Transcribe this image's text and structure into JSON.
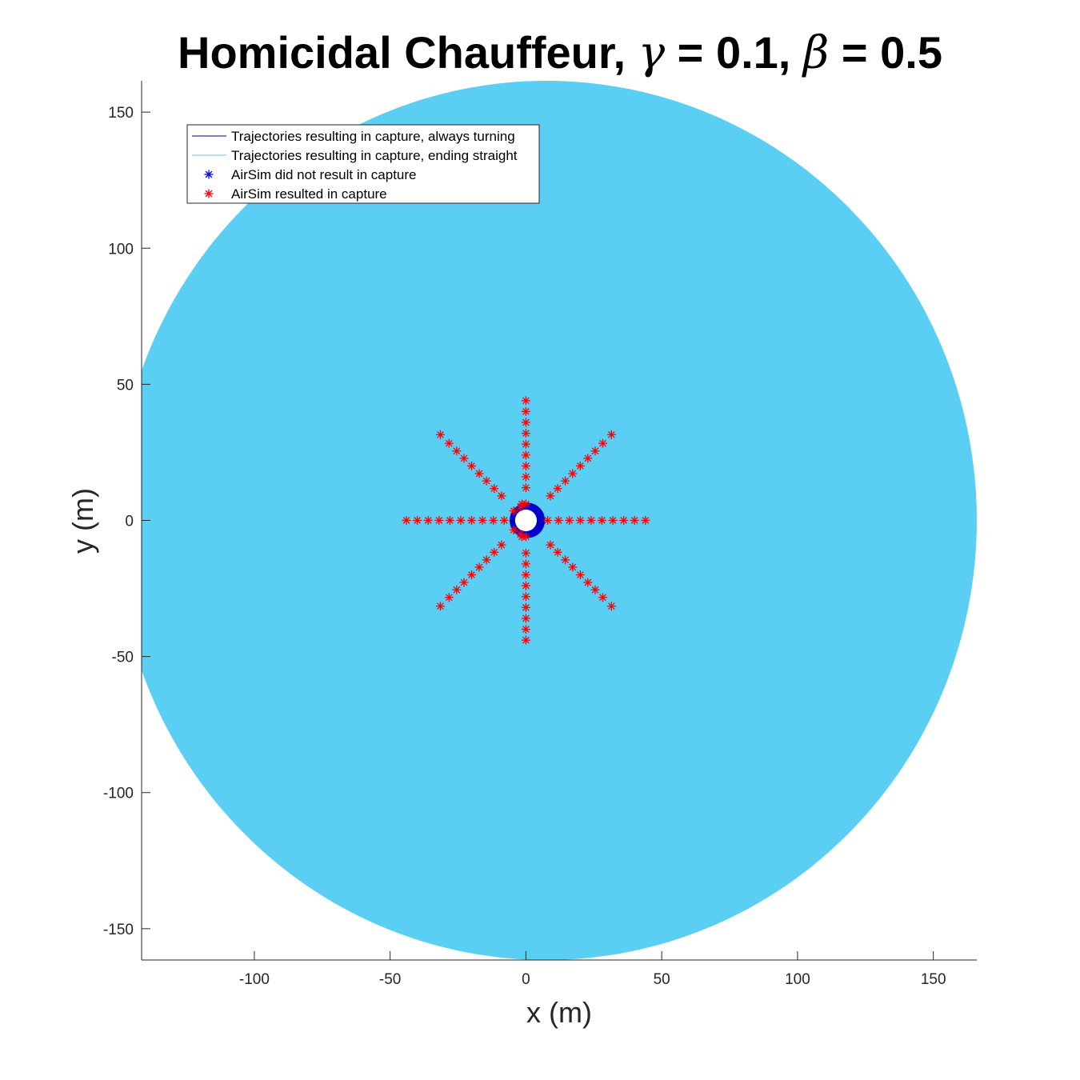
{
  "chart_data": {
    "type": "scatter",
    "title_parts": {
      "prefix": "Homicidal Chauffeur, ",
      "gamma_symbol": "γ",
      "gamma_text": " = 0.1, ",
      "beta_symbol": "β",
      "beta_text": " = 0.5"
    },
    "xlabel": "x (m)",
    "ylabel": "y (m)",
    "xlim": [
      -141.5,
      166
    ],
    "ylim": [
      -161.5,
      161.5
    ],
    "xticks": [
      -100,
      -50,
      0,
      50,
      100,
      150
    ],
    "yticks": [
      -150,
      -100,
      -50,
      0,
      50,
      100,
      150
    ],
    "grid": false,
    "legend_placement": "top-left",
    "legend": [
      {
        "label": "Trajectories resulting in capture, always turning",
        "kind": "line",
        "color": "#000080"
      },
      {
        "label": "Trajectories resulting in capture, ending straight",
        "kind": "line",
        "color": "#5bcef3"
      },
      {
        "label": "AirSim did not result in capture",
        "kind": "star",
        "color": "#0000ff"
      },
      {
        "label": "AirSim resulted in capture",
        "kind": "star",
        "color": "#ff0000"
      }
    ],
    "capture_region": {
      "color": "#5bcef3",
      "center": [
        7.5,
        0
      ],
      "x_extent": [
        -141.5,
        166
      ],
      "y_extent": [
        -161.5,
        161.5
      ]
    },
    "always_turning_region": {
      "color": "#0000cd",
      "center": [
        0.5,
        0
      ],
      "radius": 6.5
    },
    "pursuer_hole": {
      "color": "#ffffff",
      "center": [
        0,
        0
      ],
      "radius": 4
    },
    "series": [
      {
        "name": "AirSim resulted in capture",
        "color": "#ff0000",
        "marker": "star",
        "points": [
          [
            8,
            0
          ],
          [
            12,
            0
          ],
          [
            16,
            0
          ],
          [
            20,
            0
          ],
          [
            24,
            0
          ],
          [
            28,
            0
          ],
          [
            32,
            0
          ],
          [
            36,
            0
          ],
          [
            40,
            0
          ],
          [
            44,
            0
          ],
          [
            -8,
            0
          ],
          [
            -12,
            0
          ],
          [
            -16,
            0
          ],
          [
            -20,
            0
          ],
          [
            -24,
            0
          ],
          [
            -28,
            0
          ],
          [
            -32,
            0
          ],
          [
            -36,
            0
          ],
          [
            -40,
            0
          ],
          [
            -44,
            0
          ],
          [
            0,
            12
          ],
          [
            0,
            16
          ],
          [
            0,
            20
          ],
          [
            0,
            24
          ],
          [
            0,
            28
          ],
          [
            0,
            32
          ],
          [
            0,
            36
          ],
          [
            0,
            40
          ],
          [
            0,
            44
          ],
          [
            0,
            -12
          ],
          [
            0,
            -16
          ],
          [
            0,
            -20
          ],
          [
            0,
            -24
          ],
          [
            0,
            -28
          ],
          [
            0,
            -32
          ],
          [
            0,
            -36
          ],
          [
            0,
            -40
          ],
          [
            0,
            -44
          ],
          [
            9,
            9
          ],
          [
            11.7,
            11.7
          ],
          [
            14.5,
            14.5
          ],
          [
            17.2,
            17.2
          ],
          [
            20,
            20
          ],
          [
            22.8,
            22.8
          ],
          [
            25.5,
            25.5
          ],
          [
            28.3,
            28.3
          ],
          [
            31.5,
            31.5
          ],
          [
            -9,
            9
          ],
          [
            -11.7,
            11.7
          ],
          [
            -14.5,
            14.5
          ],
          [
            -17.2,
            17.2
          ],
          [
            -20,
            20
          ],
          [
            -22.8,
            22.8
          ],
          [
            -25.5,
            25.5
          ],
          [
            -28.3,
            28.3
          ],
          [
            -31.5,
            31.5
          ],
          [
            9,
            -9
          ],
          [
            11.7,
            -11.7
          ],
          [
            14.5,
            -14.5
          ],
          [
            17.2,
            -17.2
          ],
          [
            20,
            -20
          ],
          [
            22.8,
            -22.8
          ],
          [
            25.5,
            -25.5
          ],
          [
            28.3,
            -28.3
          ],
          [
            31.5,
            -31.5
          ],
          [
            -9,
            -9
          ],
          [
            -11.7,
            -11.7
          ],
          [
            -14.5,
            -14.5
          ],
          [
            -17.2,
            -17.2
          ],
          [
            -20,
            -20
          ],
          [
            -22.8,
            -22.8
          ],
          [
            -25.5,
            -25.5
          ],
          [
            -28.3,
            -28.3
          ],
          [
            -31.5,
            -31.5
          ],
          [
            0,
            6
          ],
          [
            -1.5,
            6
          ],
          [
            0,
            -6
          ],
          [
            -1.5,
            -6
          ],
          [
            -4.5,
            3.5
          ],
          [
            -4.5,
            -3.5
          ],
          [
            -2,
            5
          ],
          [
            -2,
            -5
          ]
        ]
      }
    ]
  }
}
